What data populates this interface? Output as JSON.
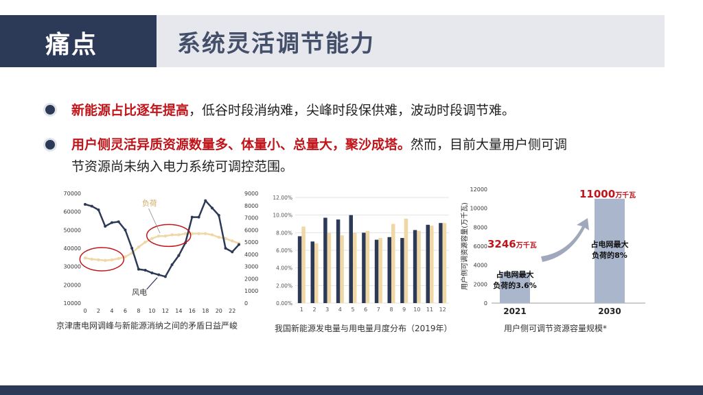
{
  "header": {
    "left_label": "痛点",
    "title": "系统灵活调节能力"
  },
  "points": [
    {
      "highlight": "新能源占比逐年提高",
      "rest": "，低谷时段消纳难，尖峰时段保供难，波动时段调节难。",
      "rest2": ""
    },
    {
      "highlight": "用户侧灵活异质资源数量多、体量小、总量大，聚沙成塔。",
      "rest": "然而，目前大量用户侧可调",
      "rest2": "节资源尚未纳入电力系统可调控范围。"
    }
  ],
  "colors": {
    "navy": "#2d3a57",
    "beige": "#f0d7a6",
    "red": "#c0141a",
    "bar_blue": "#aab6cc"
  },
  "chart_data": [
    {
      "type": "line",
      "x": [
        0,
        1,
        2,
        3,
        4,
        5,
        6,
        7,
        8,
        9,
        10,
        11,
        12,
        13,
        14,
        15,
        16,
        17,
        18,
        19,
        20,
        21,
        22,
        23
      ],
      "x_ticks": [
        "0",
        "2",
        "4",
        "6",
        "8",
        "10",
        "12",
        "14",
        "16",
        "18",
        "20",
        "22"
      ],
      "y_left_ticks": [
        "70000",
        "60000",
        "50000",
        "40000",
        "30000",
        "20000",
        "10000"
      ],
      "y_right_ticks": [
        "9000",
        "8000",
        "7000",
        "6000",
        "5000",
        "4000",
        "3000",
        "2000",
        "1000",
        "0"
      ],
      "ylim_left": [
        10000,
        70000
      ],
      "ylim_right": [
        0,
        9000
      ],
      "series": [
        {
          "name": "风电",
          "axis": "left",
          "values": [
            64000,
            63000,
            61000,
            52000,
            54000,
            54500,
            50000,
            40000,
            28500,
            28000,
            26500,
            25500,
            24500,
            31000,
            36000,
            43000,
            57000,
            57000,
            66000,
            62000,
            58000,
            40000,
            38000,
            42000
          ]
        },
        {
          "name": "负荷",
          "axis": "right",
          "values": [
            3700,
            3600,
            3550,
            3500,
            3550,
            3650,
            3800,
            4100,
            4600,
            5000,
            5300,
            5500,
            5500,
            5600,
            5600,
            5700,
            5700,
            5700,
            5700,
            5600,
            5400,
            5300,
            5100,
            4900
          ]
        }
      ],
      "caption": "京津唐电网调峰与新能源消纳之间的矛盾日益严峻"
    },
    {
      "type": "bar",
      "categories": [
        "1",
        "2",
        "3",
        "4",
        "5",
        "6",
        "7",
        "8",
        "9",
        "10",
        "11",
        "12"
      ],
      "y_ticks": [
        "12.00%",
        "10.00%",
        "8.00%",
        "6.00%",
        "4.00%",
        "2.00%",
        "0.00%"
      ],
      "ylim": [
        0,
        12
      ],
      "series": [
        {
          "values": [
            7.6,
            7.0,
            9.7,
            9.5,
            10.0,
            8.0,
            7.2,
            7.5,
            7.4,
            8.3,
            8.9,
            9.1
          ]
        },
        {
          "values": [
            8.7,
            6.8,
            8.0,
            7.7,
            8.0,
            8.2,
            7.4,
            9.0,
            9.6,
            8.2,
            8.8,
            9.1
          ]
        }
      ],
      "caption": "我国新能源发电量与用电量月度分布（2019年）"
    },
    {
      "type": "bar",
      "categories": [
        "2021",
        "2030"
      ],
      "values": [
        3246,
        11000
      ],
      "y_ticks": [
        "12000",
        "10000",
        "8000",
        "6000",
        "4000",
        "2000",
        "0"
      ],
      "ylim": [
        0,
        12000
      ],
      "ylabel": "用户侧可调资源容量(万千瓦)",
      "labels": [
        {
          "value": "3246",
          "unit": "万千瓦",
          "note_line1": "占电网最大",
          "note_line2": "负荷的3.6%"
        },
        {
          "value": "11000",
          "unit": "万千瓦",
          "note_line1": "占电网最大",
          "note_line2": "负荷的8%"
        }
      ],
      "caption": "用户侧可调节资源容量规模*"
    }
  ]
}
